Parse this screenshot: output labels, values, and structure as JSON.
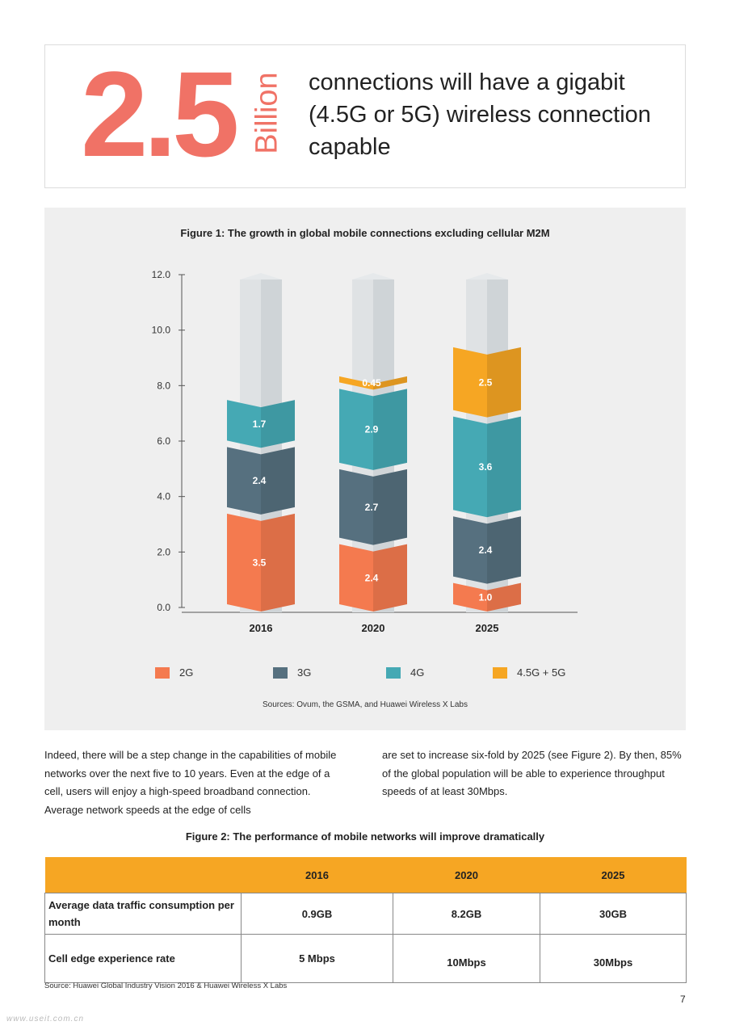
{
  "callout": {
    "number": "2.5",
    "unit": "Billion",
    "text": "connections will have a gigabit (4.5G or 5G) wireless connection capable"
  },
  "figure1": {
    "title": "Figure 1: The growth in global mobile connections excluding cellular M2M",
    "source": "Sources: Ovum, the GSMA, and Huawei Wireless X Labs"
  },
  "chart_data": {
    "type": "bar",
    "stacked": true,
    "categories": [
      "2016",
      "2020",
      "2025"
    ],
    "series": [
      {
        "name": "2G",
        "color": "#f47a4f",
        "values": [
          3.5,
          2.4,
          1.0
        ],
        "labels": [
          "3.5",
          "2.4",
          "1.0"
        ]
      },
      {
        "name": "3G",
        "color": "#56707f",
        "values": [
          2.4,
          2.7,
          2.4
        ],
        "labels": [
          "2.4",
          "2.7",
          "2.4"
        ]
      },
      {
        "name": "4G",
        "color": "#45a9b4",
        "values": [
          1.7,
          2.9,
          3.6
        ],
        "labels": [
          "1.7",
          "2.9",
          "3.6"
        ]
      },
      {
        "name": "4.5G + 5G",
        "color": "#f6a623",
        "values": [
          0,
          0.45,
          2.5
        ],
        "labels": [
          "",
          "0.45",
          "2.5"
        ]
      }
    ],
    "yticks": [
      "0.0",
      "2.0",
      "4.0",
      "6.0",
      "8.0",
      "10.0",
      "12.0"
    ],
    "ylim": [
      0,
      12
    ],
    "legend_position": "bottom"
  },
  "paragraph": {
    "col1": "Indeed, there will be a step change in the capabilities of mobile networks over the next five to 10 years. Even at the edge of a cell, users will enjoy a high-speed broadband connection. Average network speeds at the edge of cells",
    "col2": "are set to increase six-fold by 2025 (see Figure 2). By then, 85% of the global population will be able to experience throughput speeds of at least 30Mbps."
  },
  "figure2": {
    "title": "Figure 2: The performance of mobile networks will improve dramatically",
    "headers": [
      "",
      "2016",
      "2020",
      "2025"
    ],
    "rows": [
      {
        "label": "Average data traffic consumption per month",
        "values": [
          "0.9GB",
          "8.2GB",
          "30GB"
        ]
      },
      {
        "label": "Cell edge experience rate",
        "values": [
          "5 Mbps",
          "10Mbps",
          "30Mbps"
        ]
      }
    ],
    "source": "Source: Huawei Global Industry Vision 2016 & Huawei Wireless X Labs"
  },
  "page_number": "7",
  "watermark": "www.useit.com.cn"
}
